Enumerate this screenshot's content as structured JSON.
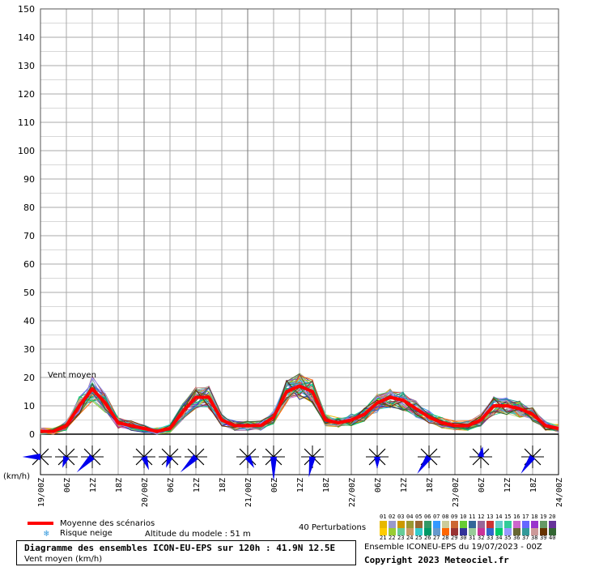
{
  "chart_data": {
    "type": "line",
    "label_text": "Vent moyen",
    "y_ticks": [
      0,
      10,
      20,
      30,
      40,
      50,
      60,
      70,
      80,
      90,
      100,
      110,
      120,
      130,
      140,
      150
    ],
    "ylim": [
      0,
      150
    ],
    "x_hours": [
      0,
      120
    ],
    "x_tick_labels": [
      "19/00Z",
      "06Z",
      "12Z",
      "18Z",
      "20/00Z",
      "06Z",
      "12Z",
      "18Z",
      "21/00Z",
      "06Z",
      "12Z",
      "18Z",
      "22/00Z",
      "06Z",
      "12Z",
      "18Z",
      "23/00Z",
      "06Z",
      "12Z",
      "18Z",
      "24/00Z"
    ],
    "mean": {
      "name": "Moyenne des scénarios",
      "color": "#ff0000",
      "x": [
        0,
        3,
        6,
        9,
        12,
        15,
        18,
        21,
        24,
        27,
        30,
        33,
        36,
        39,
        42,
        45,
        48,
        51,
        54,
        57,
        60,
        63,
        66,
        69,
        72,
        75,
        78,
        81,
        84,
        87,
        90,
        93,
        96,
        99,
        102,
        105,
        108,
        111,
        114,
        117,
        120
      ],
      "y": [
        1,
        1,
        3,
        10,
        16,
        11,
        4,
        3,
        2,
        1,
        2,
        8,
        13,
        13,
        5,
        3,
        3,
        3,
        6,
        15,
        17,
        15,
        5,
        4,
        5,
        7,
        11,
        13,
        12,
        9,
        6,
        4,
        3,
        3,
        5,
        10,
        10,
        9,
        7,
        3,
        2
      ]
    },
    "wind_roses": [
      {
        "hour": 0,
        "dir_deg": 270,
        "len": 0.7
      },
      {
        "hour": 6,
        "dir_deg": 200,
        "len": 0.45
      },
      {
        "hour": 12,
        "dir_deg": 225,
        "len": 0.85
      },
      {
        "hour": 24,
        "dir_deg": 160,
        "len": 0.55
      },
      {
        "hour": 30,
        "dir_deg": 200,
        "len": 0.45
      },
      {
        "hour": 36,
        "dir_deg": 225,
        "len": 0.85
      },
      {
        "hour": 48,
        "dir_deg": 150,
        "len": 0.5
      },
      {
        "hour": 54,
        "dir_deg": 180,
        "len": 0.95
      },
      {
        "hour": 63,
        "dir_deg": 190,
        "len": 0.8
      },
      {
        "hour": 78,
        "dir_deg": 180,
        "len": 0.45
      },
      {
        "hour": 90,
        "dir_deg": 215,
        "len": 0.8
      },
      {
        "hour": 102,
        "dir_deg": 10,
        "len": 0.4
      },
      {
        "hour": 114,
        "dir_deg": 215,
        "len": 0.8
      }
    ],
    "rose_axis_label": "(km/h)"
  },
  "footer": {
    "legend_mean": "Moyenne des scénarios",
    "legend_snow": "Risque neige",
    "altitude": "Altitude du modele : 51 m",
    "perturbations": "40 Perturbations",
    "title": "Diagramme des ensembles ICON-EU-EPS sur 120h : 41.9N 12.5E",
    "subtitle": "Vent moyen (km/h)",
    "run_info": "Ensemble ICONEU-EPS du 19/07/2023 - 00Z",
    "copyright": "Copyright 2023 Meteociel.fr",
    "perturbation_numbers_row1": [
      "01",
      "02",
      "03",
      "04",
      "05",
      "06",
      "07",
      "08",
      "09",
      "10",
      "11",
      "12",
      "13",
      "14",
      "15",
      "16",
      "17",
      "18",
      "19",
      "20"
    ],
    "perturbation_numbers_row2": [
      "21",
      "22",
      "23",
      "24",
      "25",
      "26",
      "27",
      "28",
      "29",
      "30",
      "31",
      "32",
      "33",
      "34",
      "35",
      "36",
      "37",
      "38",
      "39",
      "40"
    ],
    "perturbation_colors": [
      "#e6b800",
      "#9999cc",
      "#cc9900",
      "#999933",
      "#996633",
      "#339966",
      "#3399ff",
      "#cccc99",
      "#cc6633",
      "#66cc33",
      "#336699",
      "#996699",
      "#cc3333",
      "#66cccc",
      "#33cc99",
      "#cc66cc",
      "#6666ff",
      "#9933cc",
      "#669966",
      "#663399",
      "#ffcc00",
      "#99cc33",
      "#66cc99",
      "#cc9966",
      "#33cccc",
      "#009966",
      "#6699cc",
      "#ff6600",
      "#993333",
      "#333399",
      "#99cc99",
      "#cc3399",
      "#3366cc",
      "#00cc66",
      "#9999ff",
      "#666633",
      "#339999",
      "#cc9999",
      "#663300",
      "#336633"
    ]
  }
}
